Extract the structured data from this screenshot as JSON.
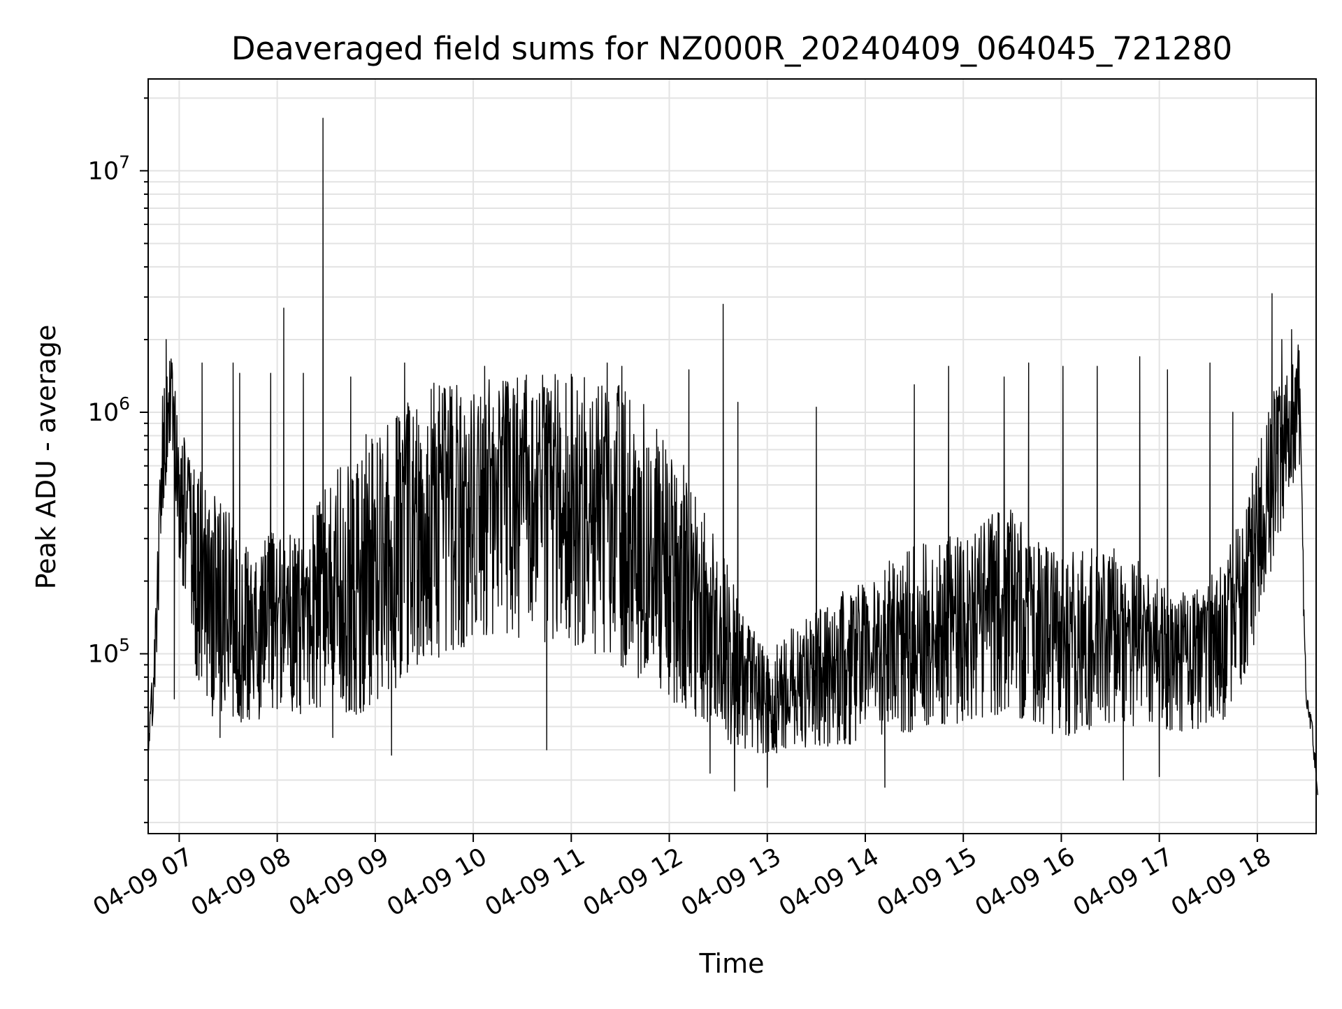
{
  "chart_data": {
    "type": "line",
    "title": "Deaveraged field sums for NZ000R_20240409_064045_721280",
    "xlabel": "Time",
    "ylabel": "Peak ADU - average",
    "yscale": "log",
    "ylim": [
      18000,
      24000000
    ],
    "xlim": [
      "04-09 06:41",
      "04-09 18:36"
    ],
    "grid": true,
    "x_ticks": [
      "04-09 07",
      "04-09 08",
      "04-09 09",
      "04-09 10",
      "04-09 11",
      "04-09 12",
      "04-09 13",
      "04-09 14",
      "04-09 15",
      "04-09 16",
      "04-09 17",
      "04-09 18"
    ],
    "y_ticks": [
      {
        "value": 100000,
        "base": "10",
        "exp": "5"
      },
      {
        "value": 1000000,
        "base": "10",
        "exp": "6"
      },
      {
        "value": 10000000,
        "base": "10",
        "exp": "7"
      }
    ],
    "series": [
      {
        "color": "#000000",
        "lower_envelope": [
          [
            "04-09 06:41",
            38000
          ],
          [
            "04-09 06:45",
            60000
          ],
          [
            "04-09 06:50",
            380000
          ],
          [
            "04-09 06:55",
            800000
          ],
          [
            "04-09 07:00",
            230000
          ],
          [
            "04-09 07:05",
            150000
          ],
          [
            "04-09 07:10",
            80000
          ],
          [
            "04-09 07:20",
            55000
          ],
          [
            "04-09 07:30",
            50000
          ],
          [
            "04-09 07:45",
            52000
          ],
          [
            "04-09 08:00",
            58000
          ],
          [
            "04-09 08:15",
            55000
          ],
          [
            "04-09 08:30",
            60000
          ],
          [
            "04-09 08:45",
            55000
          ],
          [
            "04-09 09:00",
            60000
          ],
          [
            "04-09 09:15",
            75000
          ],
          [
            "04-09 09:30",
            90000
          ],
          [
            "04-09 09:45",
            100000
          ],
          [
            "04-09 10:00",
            110000
          ],
          [
            "04-09 10:15",
            120000
          ],
          [
            "04-09 10:30",
            115000
          ],
          [
            "04-09 10:45",
            110000
          ],
          [
            "04-09 11:00",
            110000
          ],
          [
            "04-09 11:15",
            100000
          ],
          [
            "04-09 11:30",
            90000
          ],
          [
            "04-09 11:45",
            75000
          ],
          [
            "04-09 12:00",
            65000
          ],
          [
            "04-09 12:15",
            55000
          ],
          [
            "04-09 12:30",
            45000
          ],
          [
            "04-09 12:45",
            40000
          ],
          [
            "04-09 13:00",
            38000
          ],
          [
            "04-09 13:15",
            40000
          ],
          [
            "04-09 13:30",
            42000
          ],
          [
            "04-09 13:45",
            40000
          ],
          [
            "04-09 14:00",
            42000
          ],
          [
            "04-09 14:15",
            45000
          ],
          [
            "04-09 14:30",
            48000
          ],
          [
            "04-09 14:45",
            50000
          ],
          [
            "04-09 15:00",
            52000
          ],
          [
            "04-09 15:15",
            55000
          ],
          [
            "04-09 15:30",
            55000
          ],
          [
            "04-09 15:45",
            50000
          ],
          [
            "04-09 16:00",
            45000
          ],
          [
            "04-09 16:15",
            48000
          ],
          [
            "04-09 16:30",
            52000
          ],
          [
            "04-09 16:45",
            50000
          ],
          [
            "04-09 17:00",
            48000
          ],
          [
            "04-09 17:15",
            47000
          ],
          [
            "04-09 17:30",
            50000
          ],
          [
            "04-09 17:45",
            55000
          ],
          [
            "04-09 18:00",
            120000
          ],
          [
            "04-09 18:10",
            250000
          ],
          [
            "04-09 18:20",
            450000
          ],
          [
            "04-09 18:26",
            600000
          ],
          [
            "04-09 18:28",
            150000
          ],
          [
            "04-09 18:30",
            60000
          ],
          [
            "04-09 18:33",
            45000
          ],
          [
            "04-09 18:36",
            30000
          ]
        ],
        "upper_envelope": [
          [
            "04-09 06:41",
            45000
          ],
          [
            "04-09 06:45",
            120000
          ],
          [
            "04-09 06:50",
            1500000
          ],
          [
            "04-09 06:55",
            2000000
          ],
          [
            "04-09 07:00",
            900000
          ],
          [
            "04-09 07:05",
            800000
          ],
          [
            "04-09 07:10",
            600000
          ],
          [
            "04-09 07:20",
            500000
          ],
          [
            "04-09 07:30",
            400000
          ],
          [
            "04-09 07:45",
            250000
          ],
          [
            "04-09 08:00",
            350000
          ],
          [
            "04-09 08:15",
            300000
          ],
          [
            "04-09 08:30",
            500000
          ],
          [
            "04-09 08:45",
            700000
          ],
          [
            "04-09 09:00",
            900000
          ],
          [
            "04-09 09:15",
            1100000
          ],
          [
            "04-09 09:30",
            1300000
          ],
          [
            "04-09 09:45",
            1400000
          ],
          [
            "04-09 10:00",
            1450000
          ],
          [
            "04-09 10:15",
            1450000
          ],
          [
            "04-09 10:30",
            1450000
          ],
          [
            "04-09 10:45",
            1450000
          ],
          [
            "04-09 11:00",
            1450000
          ],
          [
            "04-09 11:15",
            1400000
          ],
          [
            "04-09 11:30",
            1300000
          ],
          [
            "04-09 11:45",
            1100000
          ],
          [
            "04-09 12:00",
            800000
          ],
          [
            "04-09 12:15",
            500000
          ],
          [
            "04-09 12:30",
            300000
          ],
          [
            "04-09 12:45",
            150000
          ],
          [
            "04-09 13:00",
            110000
          ],
          [
            "04-09 13:15",
            130000
          ],
          [
            "04-09 13:30",
            150000
          ],
          [
            "04-09 13:45",
            180000
          ],
          [
            "04-09 14:00",
            200000
          ],
          [
            "04-09 14:15",
            250000
          ],
          [
            "04-09 14:30",
            280000
          ],
          [
            "04-09 14:45",
            300000
          ],
          [
            "04-09 15:00",
            320000
          ],
          [
            "04-09 15:15",
            380000
          ],
          [
            "04-09 15:30",
            400000
          ],
          [
            "04-09 15:45",
            300000
          ],
          [
            "04-09 16:00",
            250000
          ],
          [
            "04-09 16:15",
            280000
          ],
          [
            "04-09 16:30",
            300000
          ],
          [
            "04-09 16:45",
            250000
          ],
          [
            "04-09 17:00",
            200000
          ],
          [
            "04-09 17:15",
            180000
          ],
          [
            "04-09 17:30",
            200000
          ],
          [
            "04-09 17:45",
            300000
          ],
          [
            "04-09 18:00",
            700000
          ],
          [
            "04-09 18:10",
            1300000
          ],
          [
            "04-09 18:20",
            1500000
          ],
          [
            "04-09 18:26",
            1900000
          ],
          [
            "04-09 18:28",
            300000
          ],
          [
            "04-09 18:30",
            70000
          ],
          [
            "04-09 18:33",
            55000
          ],
          [
            "04-09 18:36",
            40000
          ]
        ],
        "spikes": [
          [
            "04-09 06:52",
            2000000
          ],
          [
            "04-09 07:14",
            1600000
          ],
          [
            "04-09 07:33",
            1600000
          ],
          [
            "04-09 07:37",
            1450000
          ],
          [
            "04-09 07:56",
            1450000
          ],
          [
            "04-09 08:04",
            2700000
          ],
          [
            "04-09 08:16",
            1450000
          ],
          [
            "04-09 08:28",
            16500000
          ],
          [
            "04-09 08:45",
            1400000
          ],
          [
            "04-09 09:18",
            1600000
          ],
          [
            "04-09 10:07",
            1550000
          ],
          [
            "04-09 11:22",
            1600000
          ],
          [
            "04-09 11:31",
            1550000
          ],
          [
            "04-09 12:12",
            1500000
          ],
          [
            "04-09 12:33",
            2800000
          ],
          [
            "04-09 12:42",
            1100000
          ],
          [
            "04-09 13:30",
            1050000
          ],
          [
            "04-09 14:30",
            1300000
          ],
          [
            "04-09 14:51",
            1550000
          ],
          [
            "04-09 15:25",
            1400000
          ],
          [
            "04-09 15:40",
            1600000
          ],
          [
            "04-09 16:01",
            1550000
          ],
          [
            "04-09 16:22",
            1550000
          ],
          [
            "04-09 16:48",
            1700000
          ],
          [
            "04-09 17:05",
            1500000
          ],
          [
            "04-09 17:31",
            1600000
          ],
          [
            "04-09 17:45",
            1000000
          ],
          [
            "04-09 18:09",
            3100000
          ],
          [
            "04-09 18:15",
            2000000
          ],
          [
            "04-09 18:21",
            2200000
          ],
          [
            "04-09 18:25",
            1900000
          ]
        ],
        "dips": [
          [
            "04-09 06:57",
            65000
          ],
          [
            "04-09 07:25",
            45000
          ],
          [
            "04-09 08:34",
            45000
          ],
          [
            "04-09 09:10",
            38000
          ],
          [
            "04-09 10:45",
            40000
          ],
          [
            "04-09 12:25",
            32000
          ],
          [
            "04-09 12:40",
            27000
          ],
          [
            "04-09 13:00",
            28000
          ],
          [
            "04-09 14:12",
            28000
          ],
          [
            "04-09 16:38",
            30000
          ],
          [
            "04-09 17:00",
            31000
          ],
          [
            "04-09 18:37",
            26000
          ]
        ]
      }
    ]
  }
}
